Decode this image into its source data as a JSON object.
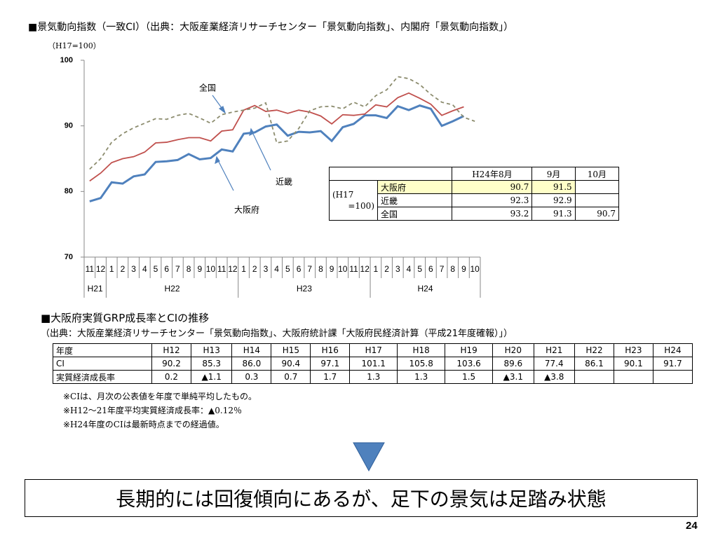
{
  "chart_data": {
    "type": "line",
    "title": "■景気動向指数（一致CI）（出典：大阪産業経済リサーチセンター「景気動向指数」、内閣府「景気動向指数」）",
    "y_label": "（H17=100）",
    "categories": [
      "11",
      "12",
      "1",
      "2",
      "3",
      "4",
      "5",
      "6",
      "7",
      "8",
      "9",
      "10",
      "11",
      "12",
      "1",
      "2",
      "3",
      "4",
      "5",
      "6",
      "7",
      "8",
      "9",
      "10",
      "11",
      "12",
      "1",
      "2",
      "3",
      "4",
      "5",
      "6",
      "7",
      "8",
      "9",
      "10"
    ],
    "year_labels": [
      "H21",
      "H22",
      "H23",
      "H24"
    ],
    "ylim": [
      70,
      100
    ],
    "yticks": [
      70,
      80,
      90,
      100
    ],
    "grid": false,
    "series": [
      {
        "name": "大阪府",
        "color": "#4f81bd",
        "dash": false,
        "values": [
          78.5,
          79.0,
          81.4,
          81.2,
          82.3,
          82.6,
          84.5,
          84.6,
          84.8,
          85.7,
          84.9,
          85.1,
          86.4,
          86.1,
          88.8,
          89.0,
          89.9,
          90.2,
          88.5,
          89.1,
          89.0,
          89.2,
          87.7,
          89.8,
          90.3,
          91.6,
          91.6,
          91.2,
          93.0,
          92.4,
          93.1,
          92.6,
          90.0,
          90.7,
          91.5,
          null
        ]
      },
      {
        "name": "近畿",
        "color": "#c0504d",
        "dash": false,
        "values": [
          81.6,
          82.8,
          84.4,
          85.0,
          85.3,
          86.0,
          87.4,
          87.5,
          87.9,
          88.2,
          88.2,
          87.7,
          89.2,
          89.4,
          92.4,
          93.1,
          92.2,
          92.4,
          91.9,
          92.4,
          92.1,
          91.5,
          90.3,
          91.7,
          91.6,
          91.8,
          93.2,
          92.9,
          94.3,
          95.0,
          94.2,
          93.3,
          91.6,
          92.3,
          92.9,
          null
        ]
      },
      {
        "name": "全国",
        "color": "#8c8c6e",
        "dash": true,
        "values": [
          83.4,
          85.0,
          87.5,
          88.8,
          89.7,
          90.4,
          91.1,
          91.0,
          91.6,
          91.9,
          91.2,
          90.4,
          91.7,
          92.1,
          92.4,
          92.7,
          93.5,
          87.4,
          87.7,
          89.6,
          92.3,
          92.9,
          93.0,
          92.6,
          93.6,
          92.9,
          94.6,
          95.5,
          97.5,
          97.2,
          96.3,
          94.8,
          93.6,
          93.2,
          91.3,
          90.7
        ]
      }
    ],
    "annotations": [
      "全国",
      "近畿",
      "大阪府"
    ],
    "inset_table": {
      "header": [
        "H24年8月",
        "9月",
        "10月"
      ],
      "row_label": [
        "(H17",
        "=100)"
      ],
      "rows": [
        {
          "name": "大阪府",
          "cells": [
            "90.7",
            "91.5",
            null
          ]
        },
        {
          "name": "近畿",
          "cells": [
            "92.3",
            "92.9",
            null
          ]
        },
        {
          "name": "全国",
          "cells": [
            "93.2",
            "91.3",
            "90.7"
          ]
        }
      ]
    }
  },
  "grp_section": {
    "title": "■大阪府実質GRP成長率とCIの推移",
    "source": "（出典：大阪産業経済リサーチセンター「景気動向指数」、大阪府統計課「大阪府民経済計算（平成21年度確報）」）",
    "table": {
      "header": [
        "年度",
        "H12",
        "H13",
        "H14",
        "H15",
        "H16",
        "H17",
        "H18",
        "H19",
        "H20",
        "H21",
        "H22",
        "H23",
        "H24"
      ],
      "rows": [
        [
          "CI",
          "90.2",
          "85.3",
          "86.0",
          "90.4",
          "97.1",
          "101.1",
          "105.8",
          "103.6",
          "89.6",
          "77.4",
          "86.1",
          "90.1",
          "91.7"
        ],
        [
          "実質経済成長率",
          "0.2",
          "▲1.1",
          "0.3",
          "0.7",
          "1.7",
          "1.3",
          "1.3",
          "1.5",
          "▲3.1",
          "▲3.8",
          null,
          null,
          null
        ]
      ]
    },
    "notes": [
      "※CIは、月次の公表値を年度で単純平均したもの。",
      "※H12～21年度平均実質経済成長率：▲0.12％",
      "※H24年度のCIは最新時点までの経過値。"
    ]
  },
  "conclusion": "長期的には回復傾向にあるが、足下の景気は足踏み状態",
  "page_number": "24"
}
